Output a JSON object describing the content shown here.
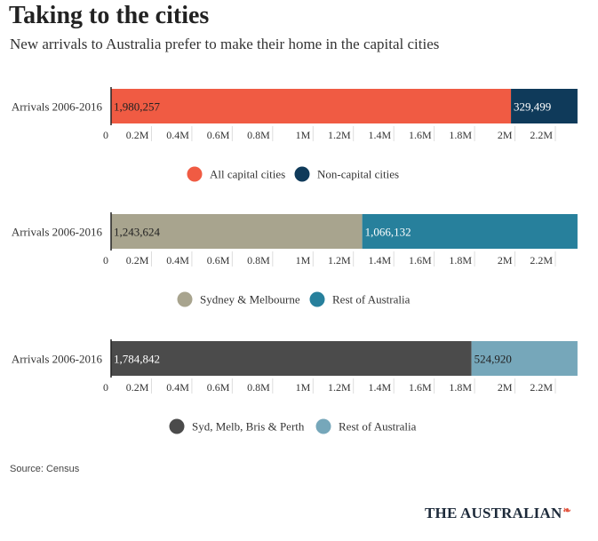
{
  "header": {
    "title": "Taking to the cities",
    "subtitle": "New arrivals to Australia prefer to make their home in the capital cities"
  },
  "footer": {
    "source": "Source: Census",
    "brand": "THE AUSTRALIAN",
    "brand_mark": "❧"
  },
  "chart_data": [
    {
      "type": "bar",
      "stacked": true,
      "orientation": "horizontal",
      "categories": [
        "Arrivals 2006-2016"
      ],
      "series": [
        {
          "name": "All capital cities",
          "values": [
            1980257
          ],
          "label": "1,980,257",
          "color": "#f05b43",
          "label_color": "#222222"
        },
        {
          "name": "Non-capital cities",
          "values": [
            329499
          ],
          "label": "329,499",
          "color": "#0f3a5a",
          "label_color": "#ffffff"
        }
      ],
      "xlim": [
        0,
        2310000
      ],
      "xticks": [
        0,
        200000,
        400000,
        600000,
        800000,
        1000000,
        1200000,
        1400000,
        1600000,
        1800000,
        2000000,
        2200000
      ],
      "xtick_labels": [
        "0",
        "0.2M",
        "0.4M",
        "0.6M",
        "0.8M",
        "1M",
        "1.2M",
        "1.4M",
        "1.6M",
        "1.8M",
        "2M",
        "2.2M"
      ],
      "legend": "bottom"
    },
    {
      "type": "bar",
      "stacked": true,
      "orientation": "horizontal",
      "categories": [
        "Arrivals 2006-2016"
      ],
      "series": [
        {
          "name": "Sydney & Melbourne",
          "values": [
            1243624
          ],
          "label": "1,243,624",
          "color": "#a8a48e",
          "label_color": "#222222"
        },
        {
          "name": "Rest of Australia",
          "values": [
            1066132
          ],
          "label": "1,066,132",
          "color": "#27809c",
          "label_color": "#ffffff"
        }
      ],
      "xlim": [
        0,
        2310000
      ],
      "xticks": [
        0,
        200000,
        400000,
        600000,
        800000,
        1000000,
        1200000,
        1400000,
        1600000,
        1800000,
        2000000,
        2200000
      ],
      "xtick_labels": [
        "0",
        "0.2M",
        "0.4M",
        "0.6M",
        "0.8M",
        "1M",
        "1.2M",
        "1.4M",
        "1.6M",
        "1.8M",
        "2M",
        "2.2M"
      ],
      "legend": "bottom"
    },
    {
      "type": "bar",
      "stacked": true,
      "orientation": "horizontal",
      "categories": [
        "Arrivals 2006-2016"
      ],
      "series": [
        {
          "name": "Syd, Melb, Bris & Perth",
          "values": [
            1784842
          ],
          "label": "1,784,842",
          "color": "#4b4b4b",
          "label_color": "#ffffff"
        },
        {
          "name": "Rest of Australia",
          "values": [
            524920
          ],
          "label": "524,920",
          "color": "#76a7ba",
          "label_color": "#222222"
        }
      ],
      "xlim": [
        0,
        2310000
      ],
      "xticks": [
        0,
        200000,
        400000,
        600000,
        800000,
        1000000,
        1200000,
        1400000,
        1600000,
        1800000,
        2000000,
        2200000
      ],
      "xtick_labels": [
        "0",
        "0.2M",
        "0.4M",
        "0.6M",
        "0.8M",
        "1M",
        "1.2M",
        "1.4M",
        "1.6M",
        "1.8M",
        "2M",
        "2.2M"
      ],
      "legend": "bottom"
    }
  ]
}
